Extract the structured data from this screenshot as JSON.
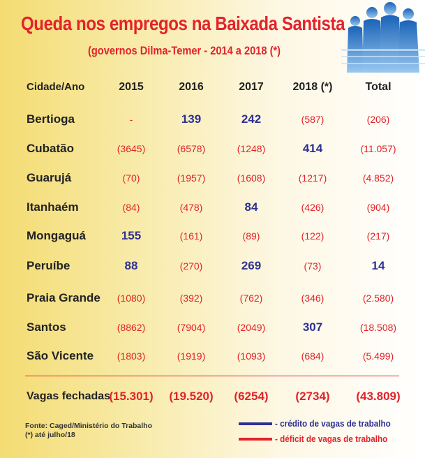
{
  "title": "Queda nos empregos na Baixada Santista",
  "subtitle": "(governos Dilma-Temer - 2014 a 2018 (*)",
  "colors": {
    "credit": "#2e3192",
    "deficit": "#e2232a",
    "title": "#e2232a"
  },
  "table": {
    "header": {
      "city": "Cidade/Ano",
      "y2015": "2015",
      "y2016": "2016",
      "y2017": "2017",
      "y2018": "2018 (*)",
      "total": "Total"
    },
    "rows": [
      {
        "city": "Bertioga",
        "y2015": "-",
        "y2016": "139",
        "y2017": "242",
        "y2018": "(587)",
        "total": "(206)"
      },
      {
        "city": "Cubatão",
        "y2015": "(3645)",
        "y2016": "(6578)",
        "y2017": "(1248)",
        "y2018": "414",
        "total": "(11.057)"
      },
      {
        "city": "Guarujá",
        "y2015": "(70)",
        "y2016": "(1957)",
        "y2017": "(1608)",
        "y2018": "(1217)",
        "total": "(4.852)"
      },
      {
        "city": "Itanhaém",
        "y2015": "(84)",
        "y2016": "(478)",
        "y2017": "84",
        "y2018": "(426)",
        "total": "(904)"
      },
      {
        "city": "Mongaguá",
        "y2015": "155",
        "y2016": "(161)",
        "y2017": "(89)",
        "y2018": "(122)",
        "total": "(217)"
      },
      {
        "city": "Peruíbe",
        "y2015": "88",
        "y2016": "(270)",
        "y2017": "269",
        "y2018": "(73)",
        "total": "14"
      },
      {
        "city": "Praia Grande",
        "y2015": "(1080)",
        "y2016": "(392)",
        "y2017": "(762)",
        "y2018": "(346)",
        "total": "(2.580)"
      },
      {
        "city": "Santos",
        "y2015": "(8862)",
        "y2016": "(7904)",
        "y2017": "(2049)",
        "y2018": "307",
        "total": "(18.508)"
      },
      {
        "city": "São Vicente",
        "y2015": "(1803)",
        "y2016": "(1919)",
        "y2017": "(1093)",
        "y2018": "(684)",
        "total": "(5.499)"
      }
    ],
    "totals": {
      "city": "Vagas fechadas",
      "y2015": "(15.301)",
      "y2016": "(19.520)",
      "y2017": "(6254)",
      "y2018": "(2734)",
      "total": "(43.809)"
    }
  },
  "source": {
    "line1": "Fonte: Caged/Ministério do Trabalho",
    "line2": "(*) até julho/18"
  },
  "legend": {
    "credit": "- crédito de vagas de trabalho",
    "deficit": "- déficit de vagas de trabalho"
  }
}
